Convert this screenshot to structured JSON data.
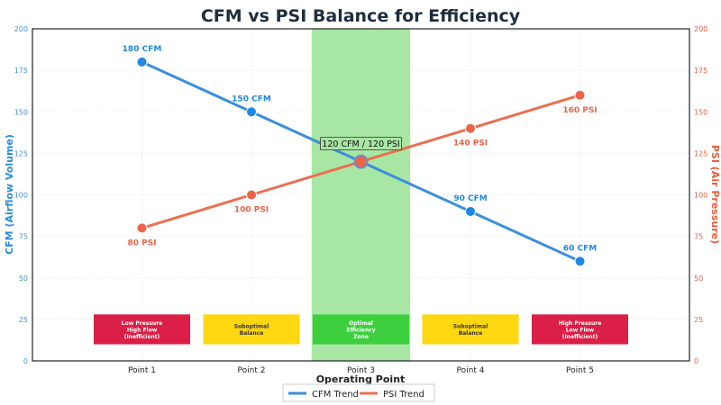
{
  "chart_data": {
    "type": "line",
    "title": "CFM vs PSI Balance for Efficiency",
    "xlabel": "Operating Point",
    "ylabel_left": "CFM (Airflow Volume)",
    "ylabel_right": "PSI (Air Pressure)",
    "categories": [
      "Point 1",
      "Point 2",
      "Point 3",
      "Point 4",
      "Point 5"
    ],
    "ylim_left": [
      0,
      200
    ],
    "ylim_right": [
      0,
      200
    ],
    "yticks": [
      0,
      25,
      50,
      75,
      100,
      125,
      150,
      175,
      200
    ],
    "grid": true,
    "legend_placement": "bottom-center",
    "series": [
      {
        "name": "CFM Trend",
        "axis": "left",
        "color": "#3b8fdc",
        "marker_color": "#1e88e5",
        "values": [
          180,
          150,
          120,
          90,
          60
        ],
        "labels": [
          "180 CFM",
          "150 CFM",
          "",
          "90 CFM",
          "60 CFM"
        ]
      },
      {
        "name": "PSI Trend",
        "axis": "right",
        "color": "#ea6f50",
        "marker_color": "#ef6448",
        "values": [
          80,
          100,
          120,
          140,
          160
        ],
        "labels": [
          "80 PSI",
          "100 PSI",
          "",
          "140 PSI",
          "160 PSI"
        ]
      }
    ],
    "optimal_band": {
      "x_range": [
        2.55,
        3.45
      ],
      "color": "#a8e6a3"
    },
    "crossover_annotation": "120 CFM / 120 PSI",
    "zones": [
      {
        "lines": [
          "Low Pressure",
          "High Flow",
          "(Inefficient)"
        ],
        "color": "#dc1f46"
      },
      {
        "lines": [
          "Suboptimal",
          "Balance"
        ],
        "color": "#fdd70f"
      },
      {
        "lines": [
          "Optimal",
          "Efficiency",
          "Zone"
        ],
        "color": "#3ecf3e"
      },
      {
        "lines": [
          "Suboptimal",
          "Balance"
        ],
        "color": "#fdd70f"
      },
      {
        "lines": [
          "High Pressure",
          "Low Flow",
          "(Inefficient)"
        ],
        "color": "#dc1f46"
      }
    ],
    "zone_y_range": [
      10,
      28
    ]
  }
}
